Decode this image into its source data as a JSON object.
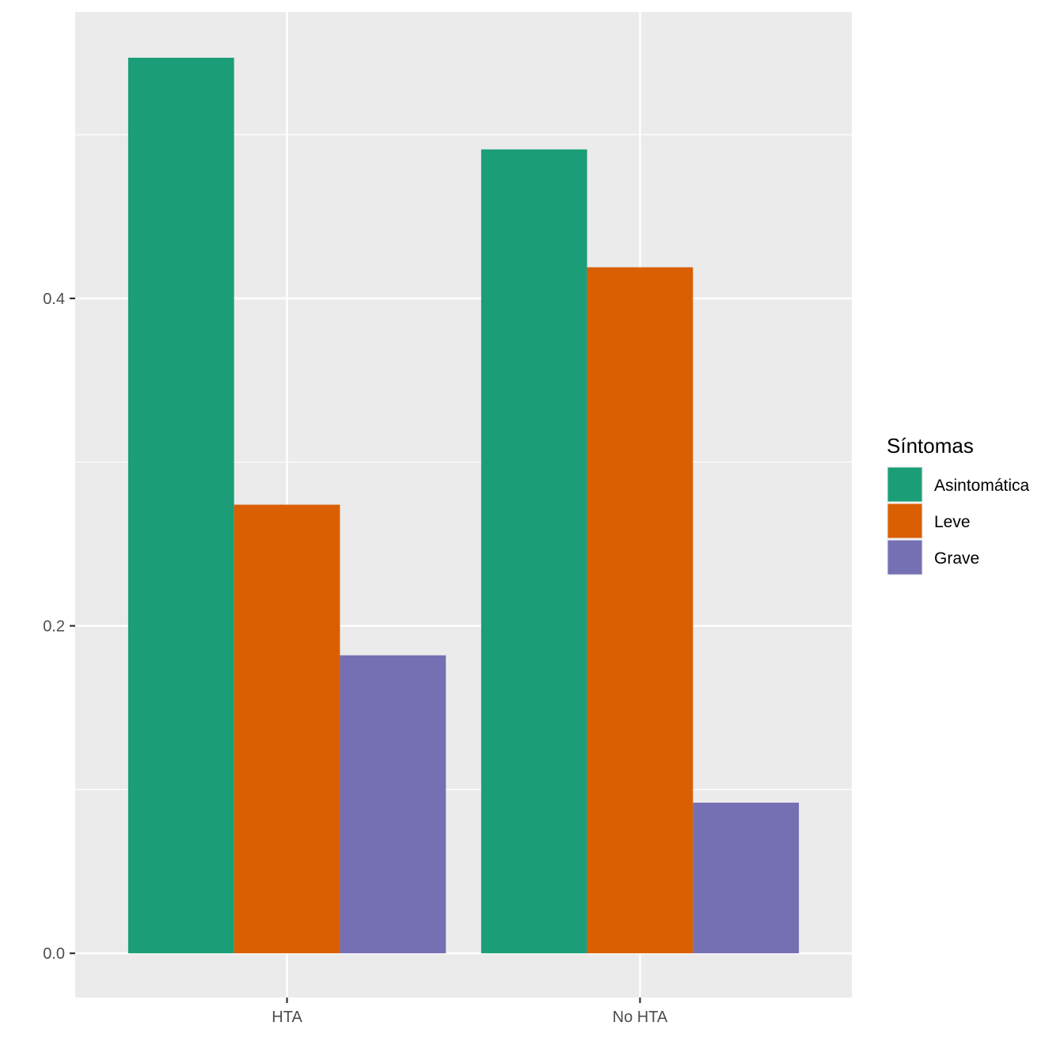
{
  "chart_data": {
    "type": "bar",
    "categories": [
      "HTA",
      "No HTA"
    ],
    "series": [
      {
        "name": "Asintomática",
        "values": [
          0.547,
          0.491
        ],
        "color": "#1B9E77"
      },
      {
        "name": "Leve",
        "values": [
          0.274,
          0.419
        ],
        "color": "#D95F02"
      },
      {
        "name": "Grave",
        "values": [
          0.182,
          0.092
        ],
        "color": "#7570B3"
      }
    ],
    "y_ticks": [
      "0.0",
      "0.2",
      "0.4"
    ],
    "y_tick_values": [
      0,
      0.2,
      0.4
    ],
    "ylim": [
      -0.027,
      0.575
    ],
    "title": "",
    "xlabel": "",
    "ylabel": "",
    "legend_title": "Síntomas",
    "legend_position": "right",
    "grid": true,
    "panel_color": "#EBEBEB",
    "grid_color": "#FFFFFF"
  }
}
